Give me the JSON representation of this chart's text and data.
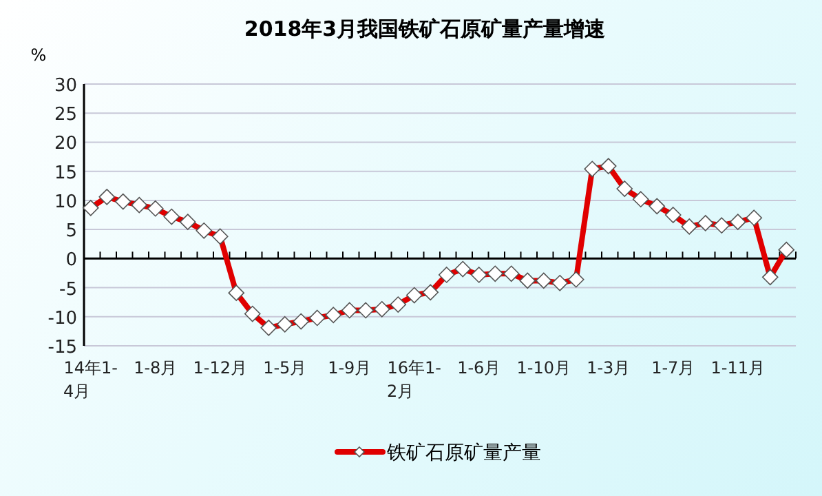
{
  "chart_data": {
    "type": "line",
    "title": "2018年3月我国铁矿石原矿量产量增速",
    "ylabel": "%",
    "categories": [
      "14年1-4月",
      null,
      null,
      null,
      "1-8月",
      null,
      null,
      null,
      "1-12月",
      null,
      null,
      null,
      "1-5月",
      null,
      null,
      null,
      "1-9月",
      null,
      null,
      null,
      "16年1-2月",
      null,
      null,
      null,
      "1-6月",
      null,
      null,
      null,
      "1-10月",
      null,
      null,
      null,
      "1-3月",
      null,
      null,
      null,
      "1-7月",
      null,
      null,
      null,
      "1-11月",
      null,
      null,
      null
    ],
    "series": [
      {
        "name": "铁矿石原矿量产量",
        "color": "#e00000",
        "values": [
          8.7,
          10.6,
          9.8,
          9.2,
          8.6,
          7.2,
          6.3,
          4.8,
          3.8,
          -5.9,
          -9.5,
          -11.9,
          -11.3,
          -10.8,
          -10.2,
          -9.7,
          -8.9,
          -8.9,
          -8.7,
          -7.9,
          -6.3,
          -5.8,
          -2.8,
          -1.8,
          -2.8,
          -2.6,
          -2.6,
          -3.8,
          -3.8,
          -4.2,
          -3.6,
          15.4,
          15.9,
          12.0,
          10.2,
          9.0,
          7.5,
          5.5,
          6.1,
          5.7,
          6.3,
          7.0,
          -3.2,
          1.5
        ]
      }
    ],
    "ylim": [
      -15,
      30
    ],
    "yticks": [
      -15,
      -10,
      -5,
      0,
      5,
      10,
      15,
      20,
      25,
      30
    ],
    "grid": "y",
    "legend": "bottom",
    "marker": "diamond"
  }
}
